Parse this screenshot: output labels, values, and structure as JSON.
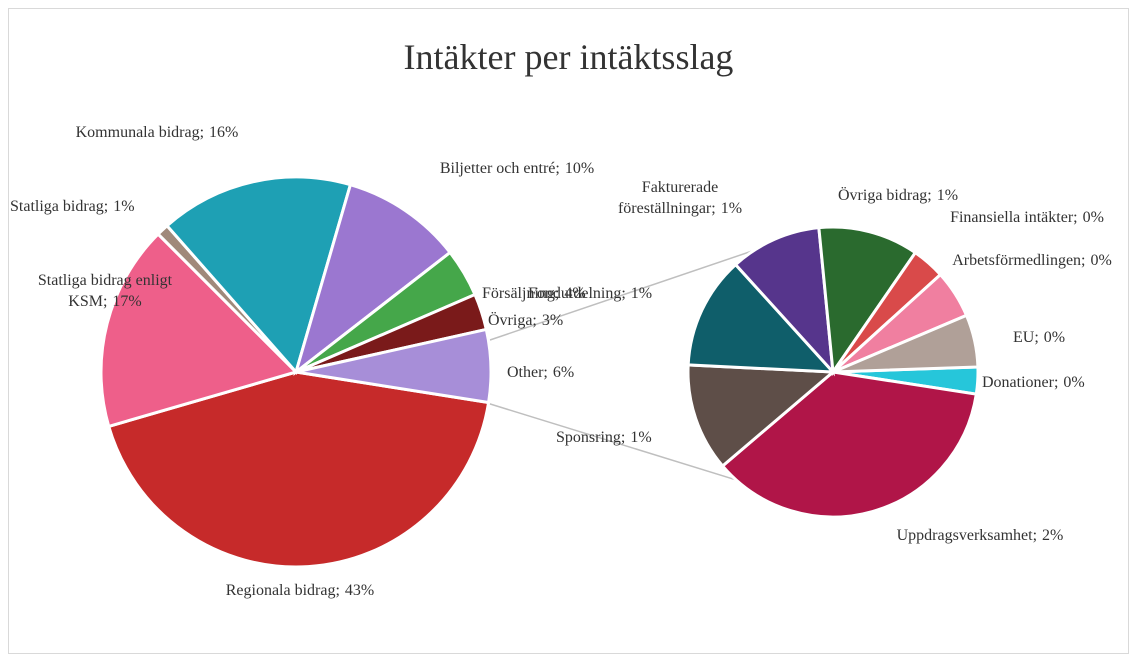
{
  "chart_data": {
    "type": "pie-of-pie",
    "title": "Intäkter per intäktsslag",
    "pies": [
      {
        "categories": [
          "Regionala bidrag;",
          "Statliga bidrag enligt KSM;",
          "Statliga bidrag;",
          "Kommunala bidrag;",
          "Biljetter och entré;",
          "Försäljning;",
          "Övriga;",
          "Other;"
        ],
        "values": [
          43,
          17,
          1,
          16,
          10,
          4,
          3,
          6
        ],
        "value_labels": [
          "43%",
          "17%",
          "1%",
          "16%",
          "10%",
          "4%",
          "3%",
          "6%"
        ],
        "colors": [
          "#c62a2a",
          "#ee5f8a",
          "#a0897a",
          "#1ea0b4",
          "#9b77d0",
          "#45a74a",
          "#7a1a1a",
          "#a78ed8"
        ]
      },
      {
        "categories": [
          "Donationer;",
          "Uppdragsverksamhet;",
          "Sponsring;",
          "Fondutdelning;",
          "Fakturerade föreställningar;",
          "Övriga bidrag;",
          "Finansiella intäkter;",
          "Arbetsförmedlingen;",
          "EU;"
        ],
        "values": [
          0.18,
          2.18,
          0.72,
          0.75,
          0.61,
          0.67,
          0.22,
          0.32,
          0.35
        ],
        "value_labels": [
          "0%",
          "2%",
          "1%",
          "1%",
          "1%",
          "1%",
          "0%",
          "0%",
          "0%"
        ],
        "colors": [
          "#26c6da",
          "#b01548",
          "#5e4e48",
          "#0f5e6a",
          "#56358c",
          "#2a6a2e",
          "#d94a4a",
          "#f07fa0",
          "#b0a098"
        ]
      }
    ]
  }
}
